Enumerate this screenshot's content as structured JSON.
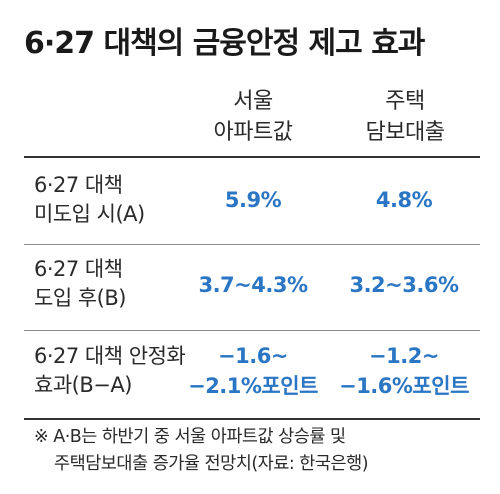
{
  "title": "6·27 대책의 금융안정 제고 효과",
  "columns": {
    "seoul_apartment": [
      "서울",
      "아파트값"
    ],
    "mortgage": [
      "주택",
      "담보대출"
    ]
  },
  "rows": [
    {
      "label": [
        "6·27 대책",
        "미도입 시(A)"
      ],
      "seoul_apartment": [
        "5.9%"
      ],
      "mortgage": [
        "4.8%"
      ]
    },
    {
      "label": [
        "6·27 대책",
        "도입 후(B)"
      ],
      "seoul_apartment": [
        "3.7~4.3%"
      ],
      "mortgage": [
        "3.2~3.6%"
      ]
    },
    {
      "label": [
        "6·27 대책 안정화",
        "효과(B−A)"
      ],
      "seoul_apartment": [
        "−1.6~",
        "−2.1%포인트"
      ],
      "mortgage": [
        "−1.2~",
        "−1.6%포인트"
      ]
    }
  ],
  "footnote": [
    "※ A·B는 하반기 중 서울 아파트값 상승률 및",
    "주택담보대출 증가율 전망치(자료: 한국은행)"
  ],
  "colors": {
    "value": "#2a76c4",
    "text": "#222222",
    "rule_thick": "#333333",
    "rule_thin": "#8a8a8a"
  }
}
